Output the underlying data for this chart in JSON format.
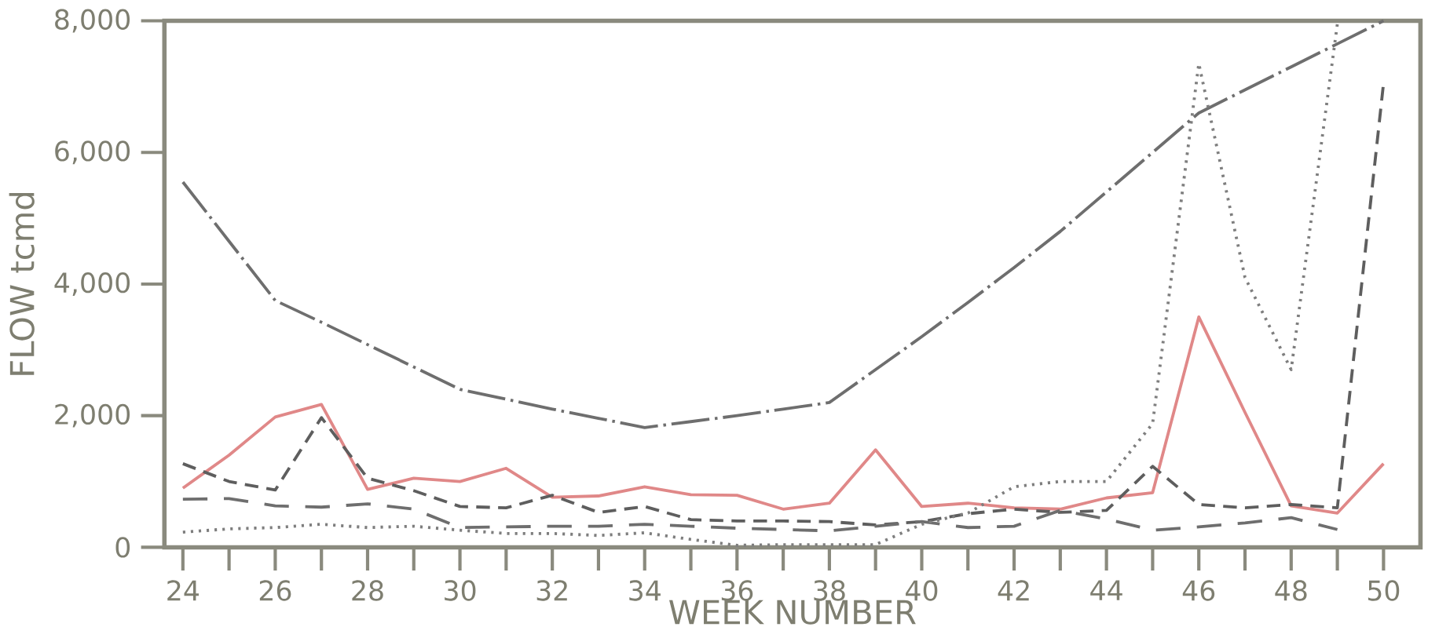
{
  "chart_data": {
    "type": "line",
    "xlabel": "WEEK NUMBER",
    "ylabel": "FLOW tcmd",
    "x": [
      24,
      25,
      26,
      27,
      28,
      29,
      30,
      31,
      32,
      33,
      34,
      35,
      36,
      37,
      38,
      39,
      40,
      41,
      42,
      43,
      44,
      45,
      46,
      47,
      48,
      49,
      50
    ],
    "xlim": [
      23.6,
      50.8
    ],
    "ylim": [
      0,
      8000
    ],
    "xticks": [
      24,
      26,
      28,
      30,
      32,
      34,
      36,
      38,
      40,
      42,
      44,
      46,
      48,
      50
    ],
    "yticks": [
      0,
      {
        "value": 2000,
        "label": "2,000"
      },
      {
        "value": 4000,
        "label": "4,000"
      },
      {
        "value": 6000,
        "label": "6,000"
      },
      {
        "value": 8000,
        "label": "8,000"
      }
    ],
    "grid": false,
    "series": [
      {
        "color": "#6e6e6e",
        "line_style": "dashdot",
        "values": [
          5550,
          4650,
          3750,
          3420,
          3080,
          2740,
          2400,
          2250,
          2100,
          1960,
          1820,
          1910,
          2000,
          2100,
          2200,
          2700,
          3200,
          3720,
          4250,
          4800,
          5400,
          6000,
          6600,
          6950,
          7300,
          7650,
          8000
        ]
      },
      {
        "color": "#e08888",
        "line_style": "solid",
        "values": [
          900,
          1400,
          1980,
          2170,
          880,
          1050,
          1000,
          1200,
          760,
          780,
          920,
          800,
          790,
          580,
          670,
          1480,
          620,
          670,
          600,
          580,
          750,
          830,
          3500,
          2050,
          630,
          520,
          1270
        ]
      },
      {
        "color": "#5e5e5e",
        "line_style": "dashed",
        "values": [
          1270,
          1000,
          870,
          1970,
          1050,
          860,
          620,
          600,
          790,
          530,
          620,
          420,
          400,
          400,
          390,
          340,
          390,
          510,
          580,
          530,
          560,
          1230,
          650,
          600,
          650,
          600,
          7050
        ]
      },
      {
        "color": "#6e6e6e",
        "line_style": "longdashed",
        "values": [
          730,
          740,
          630,
          610,
          660,
          580,
          300,
          310,
          320,
          320,
          350,
          320,
          290,
          270,
          250,
          320,
          390,
          300,
          320,
          560,
          430,
          260,
          310,
          370,
          450,
          270,
          null
        ]
      },
      {
        "color": "#7e7e7e",
        "line_style": "dotted",
        "values": [
          230,
          280,
          300,
          350,
          300,
          320,
          260,
          210,
          210,
          180,
          220,
          120,
          30,
          40,
          40,
          40,
          350,
          520,
          920,
          1000,
          1000,
          1880,
          7350,
          4100,
          2700,
          7950,
          null
        ]
      }
    ]
  }
}
